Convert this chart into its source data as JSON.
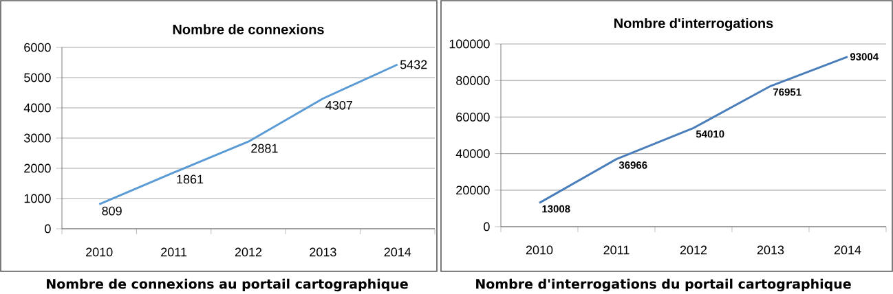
{
  "chart_data": [
    {
      "type": "line",
      "title": "Nombre de connexions",
      "categories": [
        "2010",
        "2011",
        "2012",
        "2013",
        "2014"
      ],
      "values": [
        809,
        1861,
        2881,
        4307,
        5432
      ],
      "color": "#5b9bd5",
      "ylim": [
        0,
        6000
      ],
      "yticks": [
        0,
        1000,
        2000,
        3000,
        4000,
        5000,
        6000
      ],
      "grid": "y",
      "marker": "none",
      "data_labels": true,
      "annotations": [
        "Nombre de connexions au portail cartographique"
      ]
    },
    {
      "type": "line",
      "title": "Nombre d'interrogations",
      "categories": [
        "2010",
        "2011",
        "2012",
        "2013",
        "2014"
      ],
      "values": [
        13008,
        36966,
        54010,
        76951,
        93004
      ],
      "color": "#4a7ebb",
      "ylim": [
        0,
        100000
      ],
      "yticks": [
        0,
        20000,
        40000,
        60000,
        80000,
        100000
      ],
      "grid": "y",
      "marker": "none",
      "data_labels": true,
      "annotations": [
        "Nombre d'interrogations du portail cartographique"
      ]
    }
  ]
}
